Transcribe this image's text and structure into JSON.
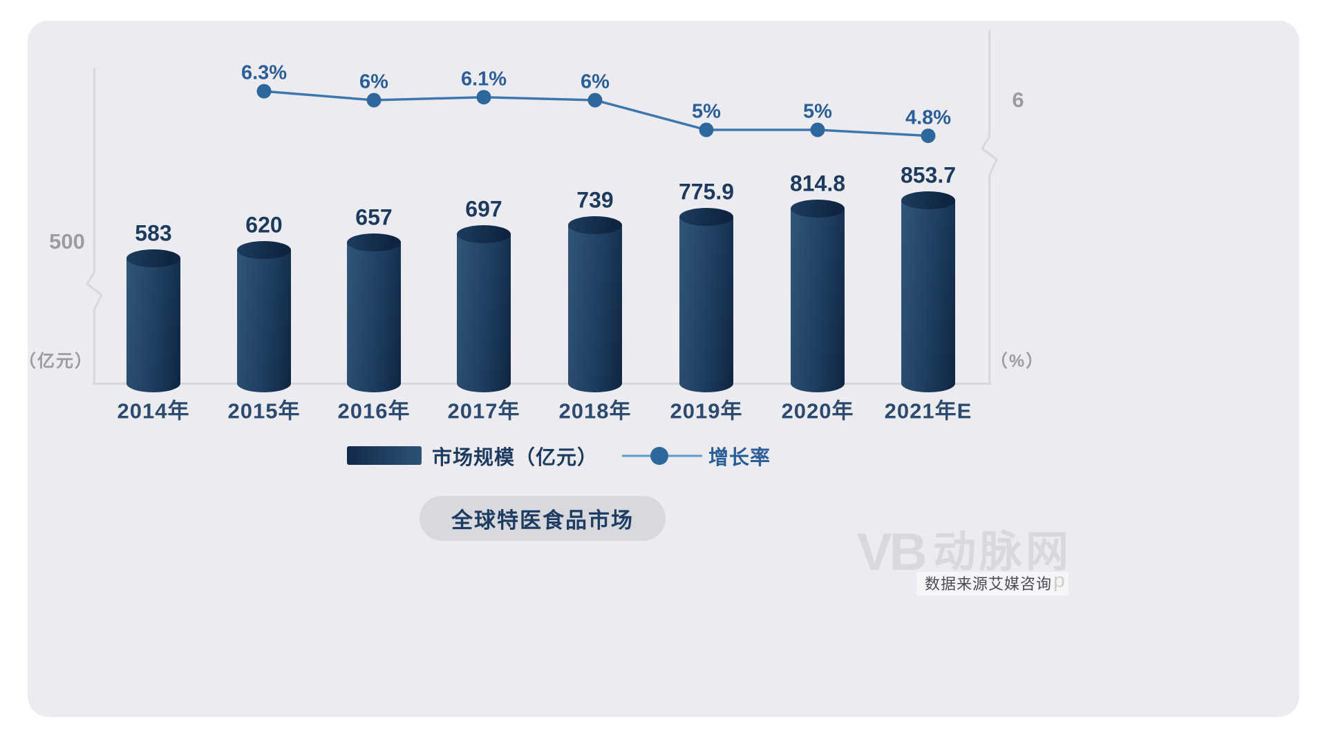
{
  "chart_data": {
    "type": "bar",
    "subtype": "bar+line combo, cylinder bars",
    "title": "全球特医食品市场",
    "categories": [
      "2014年",
      "2015年",
      "2016年",
      "2017年",
      "2018年",
      "2019年",
      "2020年",
      "2021年E"
    ],
    "series": [
      {
        "name": "市场规模（亿元）",
        "type": "bar",
        "unit": "亿元",
        "values": [
          583,
          620,
          657,
          697,
          739,
          775.9,
          814.8,
          853.7
        ]
      },
      {
        "name": "增长率",
        "type": "line",
        "unit": "%",
        "values": [
          null,
          6.3,
          6,
          6.1,
          6,
          5,
          5,
          4.8
        ],
        "labels": [
          "",
          "6.3%",
          "6%",
          "6.1%",
          "6%",
          "5%",
          "5%",
          "4.8%"
        ]
      }
    ],
    "left_axis": {
      "tick": "500",
      "unit_label": "（亿元）",
      "axis_break": true
    },
    "right_axis": {
      "tick": "6",
      "unit_label": "（%）",
      "axis_break": true
    },
    "grid": false,
    "legend_position": "bottom"
  },
  "legend": {
    "bar_label": "市场规模（亿元）",
    "line_label": "增长率"
  },
  "footer": {
    "title_pill": "全球特医食品市场"
  },
  "watermark": {
    "logo": "VB",
    "brand": "动脉网",
    "source": "数据来源艾媒咨询",
    "faint": "p"
  },
  "colors": {
    "card_bg": "#ececf0",
    "bar_gradient_light": "#315679",
    "bar_gradient_dark": "#0f2541",
    "line": "#3f76ad",
    "dot": "#2e679e",
    "axis": "#d7d7dc",
    "text_navy": "#1c3a5e",
    "text_blue": "#2b5d97",
    "text_gray": "#9b9ba3",
    "pill_bg": "#d8d8dd"
  }
}
